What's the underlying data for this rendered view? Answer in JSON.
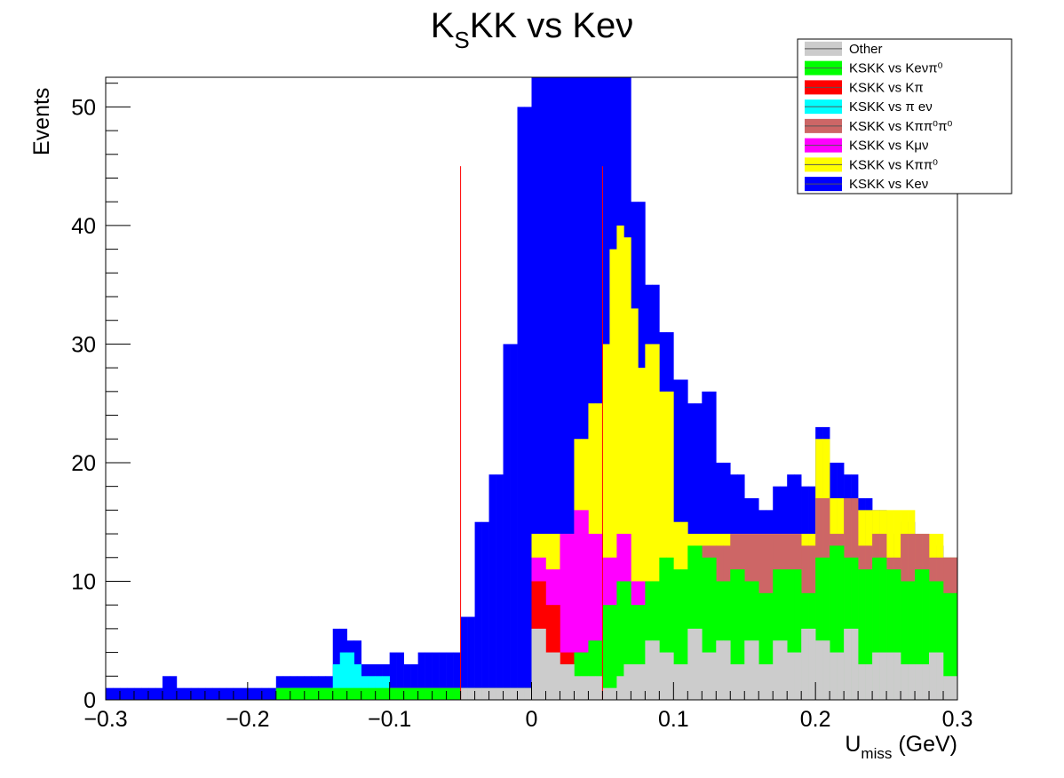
{
  "chart_data": {
    "type": "area",
    "title_main": "K",
    "title_sub": "S",
    "title_rest": "KK vs Keν",
    "xlabel_main": "U",
    "xlabel_sub": "miss",
    "xlabel_rest": " (GeV)",
    "ylabel": "Events",
    "xlim": [
      -0.3,
      0.3
    ],
    "ylim": [
      0,
      52.5
    ],
    "x_ticks": [
      -0.3,
      -0.2,
      -0.1,
      0,
      0.1,
      0.2,
      0.3
    ],
    "x_tick_labels": [
      "−0.3",
      "−0.2",
      "−0.1",
      "0",
      "0.1",
      "0.2",
      "0.3"
    ],
    "y_ticks": [
      0,
      10,
      20,
      30,
      40,
      50
    ],
    "y_tick_labels": [
      "0",
      "10",
      "20",
      "30",
      "40",
      "50"
    ],
    "cut_lines_x": [
      -0.05,
      0.05
    ],
    "cut_line_top": 45,
    "cut_line_color": "#ff0000",
    "legend_position": "top-right",
    "series": [
      {
        "name": "Other",
        "color": "#cccccc",
        "points": [
          [
            -0.05,
            1
          ],
          [
            -0.02,
            1
          ],
          [
            0,
            6
          ],
          [
            0.01,
            4
          ],
          [
            0.02,
            3
          ],
          [
            0.03,
            2
          ],
          [
            0.04,
            2
          ],
          [
            0.05,
            1
          ],
          [
            0.06,
            2
          ],
          [
            0.065,
            3
          ],
          [
            0.075,
            3
          ],
          [
            0.08,
            5
          ],
          [
            0.09,
            4
          ],
          [
            0.1,
            3
          ],
          [
            0.11,
            6
          ],
          [
            0.12,
            4
          ],
          [
            0.13,
            5
          ],
          [
            0.14,
            3
          ],
          [
            0.15,
            5
          ],
          [
            0.16,
            3
          ],
          [
            0.17,
            5
          ],
          [
            0.18,
            4
          ],
          [
            0.19,
            6
          ],
          [
            0.2,
            5
          ],
          [
            0.21,
            4
          ],
          [
            0.22,
            6
          ],
          [
            0.23,
            3
          ],
          [
            0.24,
            4
          ],
          [
            0.25,
            4
          ],
          [
            0.26,
            3
          ],
          [
            0.27,
            3
          ],
          [
            0.28,
            4
          ],
          [
            0.29,
            2
          ],
          [
            0.3,
            2
          ]
        ]
      },
      {
        "name": "KSKK vs Keνπ⁰",
        "color": "#00ff00",
        "points": [
          [
            -0.18,
            1
          ],
          [
            -0.16,
            1
          ],
          [
            0.02,
            3
          ],
          [
            0.03,
            4
          ],
          [
            0.04,
            5
          ],
          [
            0.05,
            8
          ],
          [
            0.06,
            10
          ],
          [
            0.07,
            8
          ],
          [
            0.08,
            10
          ],
          [
            0.09,
            12
          ],
          [
            0.1,
            11
          ],
          [
            0.11,
            13
          ],
          [
            0.12,
            12
          ],
          [
            0.13,
            10
          ],
          [
            0.14,
            11
          ],
          [
            0.15,
            10
          ],
          [
            0.16,
            9
          ],
          [
            0.17,
            11
          ],
          [
            0.18,
            11
          ],
          [
            0.19,
            9
          ],
          [
            0.2,
            12
          ],
          [
            0.21,
            13
          ],
          [
            0.22,
            12
          ],
          [
            0.23,
            11
          ],
          [
            0.24,
            12
          ],
          [
            0.25,
            11
          ],
          [
            0.26,
            10
          ],
          [
            0.27,
            11
          ],
          [
            0.28,
            10
          ],
          [
            0.29,
            9
          ],
          [
            0.3,
            8
          ]
        ]
      },
      {
        "name": "KSKK vs Kπ",
        "color": "#ff0000",
        "points": [
          [
            -0.04,
            1
          ],
          [
            0,
            10
          ],
          [
            0.01,
            8
          ],
          [
            0.02,
            4
          ]
        ]
      },
      {
        "name": "KSKK vs π eν",
        "color": "#00ffff",
        "points": [
          [
            -0.17,
            1
          ],
          [
            -0.14,
            3
          ],
          [
            -0.135,
            4
          ],
          [
            -0.125,
            3
          ],
          [
            -0.12,
            2
          ]
        ]
      },
      {
        "name": "KSKK vs Kππ⁰π⁰",
        "color": "#cd6666",
        "points": [
          [
            0.12,
            13
          ],
          [
            0.14,
            14
          ],
          [
            0.19,
            13
          ],
          [
            0.2,
            17
          ],
          [
            0.21,
            14
          ],
          [
            0.22,
            17
          ],
          [
            0.23,
            13
          ],
          [
            0.24,
            14
          ],
          [
            0.25,
            12
          ],
          [
            0.26,
            14
          ],
          [
            0.27,
            14
          ],
          [
            0.28,
            12
          ]
        ]
      },
      {
        "name": "KSKK vs Kμν",
        "color": "#ff00ff",
        "points": [
          [
            -0.18,
            1
          ],
          [
            0,
            12
          ],
          [
            0.01,
            11
          ],
          [
            0.02,
            14
          ],
          [
            0.03,
            16
          ],
          [
            0.04,
            14
          ],
          [
            0.05,
            12
          ],
          [
            0.06,
            14
          ],
          [
            0.07,
            10
          ]
        ]
      },
      {
        "name": "KSKK vs Kππ⁰",
        "color": "#ffff00",
        "points": [
          [
            -0.1,
            1
          ],
          [
            -0.07,
            1
          ],
          [
            0,
            14
          ],
          [
            0.03,
            22
          ],
          [
            0.04,
            25
          ],
          [
            0.05,
            30
          ],
          [
            0.055,
            38
          ],
          [
            0.06,
            40
          ],
          [
            0.065,
            39
          ],
          [
            0.07,
            33
          ],
          [
            0.075,
            28
          ],
          [
            0.08,
            30
          ],
          [
            0.09,
            26
          ],
          [
            0.1,
            15
          ],
          [
            0.11,
            14
          ],
          [
            0.2,
            22
          ],
          [
            0.21,
            17
          ],
          [
            0.22,
            16
          ],
          [
            0.27,
            14
          ],
          [
            0.29,
            12
          ]
        ]
      },
      {
        "name": "KSKK vs Keν",
        "color": "#0000ff",
        "points": [
          [
            -0.3,
            1
          ],
          [
            -0.27,
            1
          ],
          [
            -0.26,
            2
          ],
          [
            -0.25,
            1
          ],
          [
            -0.23,
            1
          ],
          [
            -0.2,
            1
          ],
          [
            -0.18,
            2
          ],
          [
            -0.14,
            6
          ],
          [
            -0.13,
            5
          ],
          [
            -0.12,
            3
          ],
          [
            -0.11,
            3
          ],
          [
            -0.1,
            4
          ],
          [
            -0.09,
            3
          ],
          [
            -0.08,
            4
          ],
          [
            -0.06,
            4
          ],
          [
            -0.05,
            7
          ],
          [
            -0.04,
            15
          ],
          [
            -0.03,
            19
          ],
          [
            -0.02,
            30
          ],
          [
            -0.01,
            50
          ],
          [
            0,
            52.5
          ],
          [
            0.02,
            52.5
          ],
          [
            0.06,
            52.5
          ],
          [
            0.07,
            42
          ],
          [
            0.08,
            35
          ],
          [
            0.09,
            31
          ],
          [
            0.1,
            27
          ],
          [
            0.11,
            25
          ],
          [
            0.12,
            26
          ],
          [
            0.13,
            20
          ],
          [
            0.14,
            19
          ],
          [
            0.15,
            17
          ],
          [
            0.16,
            16
          ],
          [
            0.17,
            18
          ],
          [
            0.18,
            19
          ],
          [
            0.19,
            18
          ],
          [
            0.2,
            23
          ],
          [
            0.21,
            20
          ],
          [
            0.22,
            19
          ],
          [
            0.23,
            17
          ],
          [
            0.24,
            16
          ],
          [
            0.25,
            14
          ],
          [
            0.26,
            15
          ],
          [
            0.27,
            13
          ],
          [
            0.28,
            13
          ],
          [
            0.29,
            12
          ],
          [
            0.3,
            11
          ]
        ]
      }
    ]
  }
}
